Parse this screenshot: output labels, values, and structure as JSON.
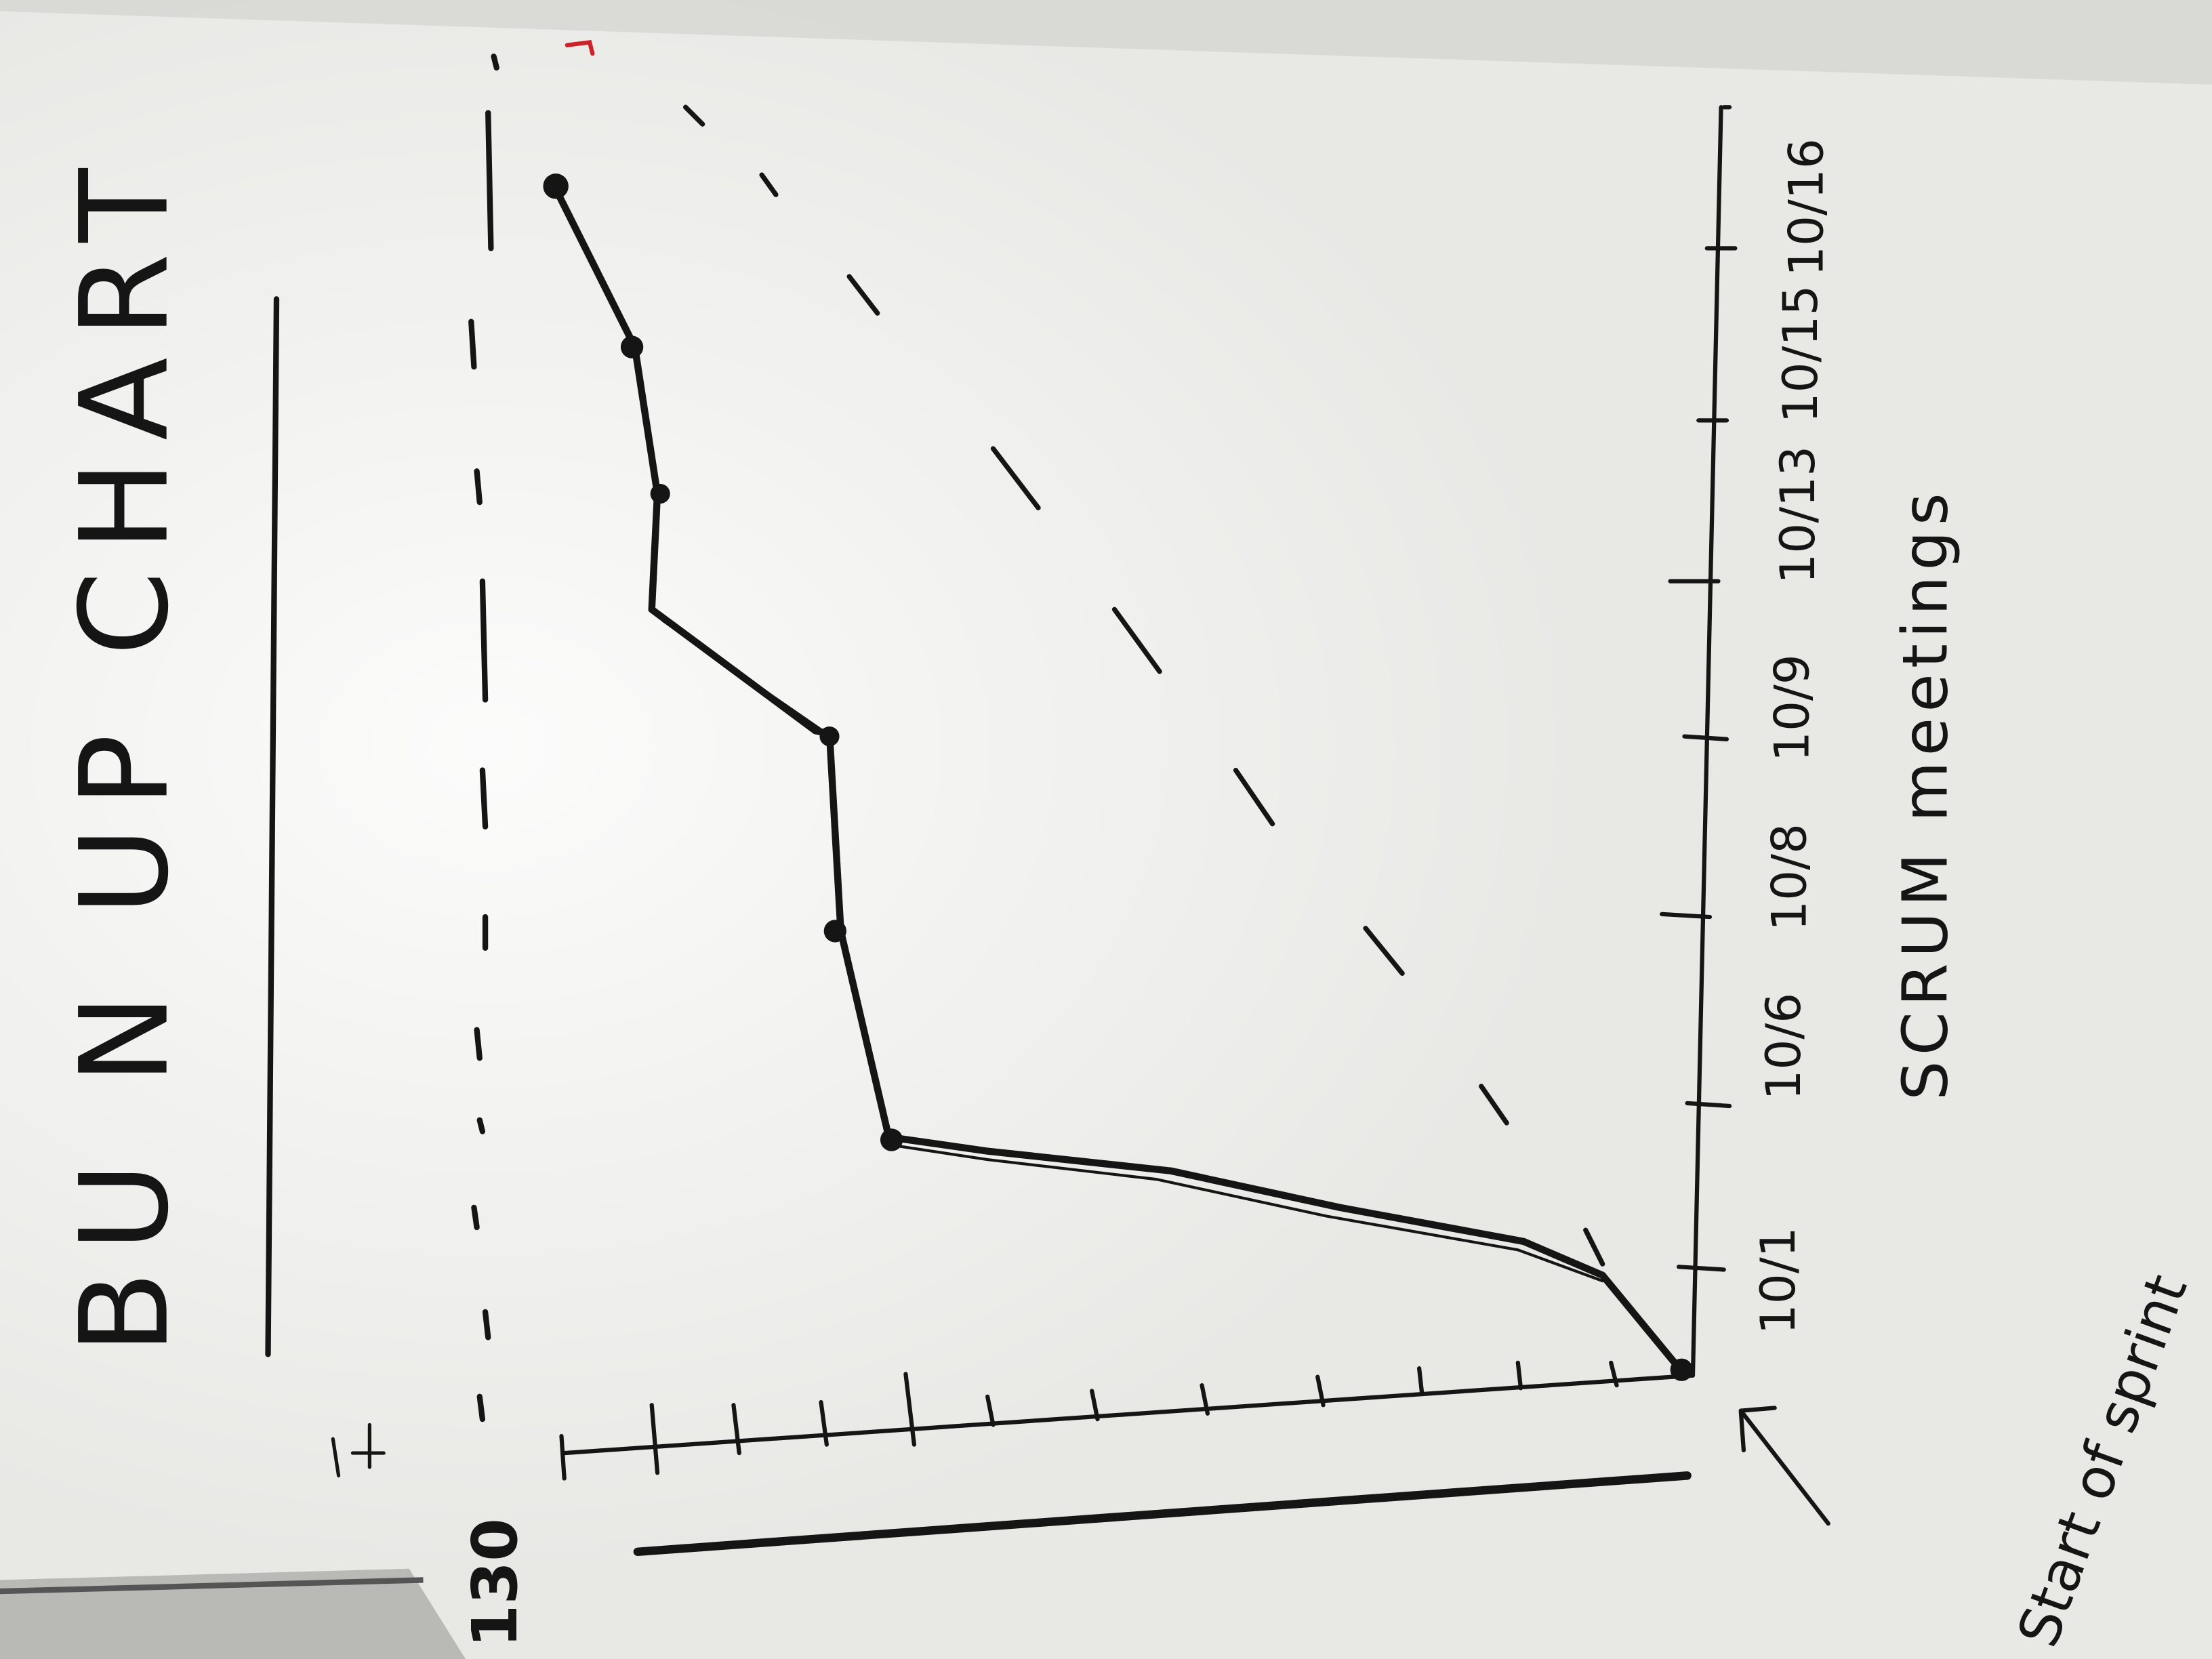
{
  "board": {
    "title": "BU N UP CHART",
    "y_axis_top_label": "130",
    "x_axis_label": "SCRUM meetings",
    "start_annotation": "Start of sprint",
    "x_tick_labels": [
      "10/1",
      "10/6",
      "10/8",
      "10/9",
      "10/13",
      "10/15",
      "10/16"
    ]
  },
  "colors": {
    "board": "#e6e6e3",
    "marker": "#151515",
    "secondary_marker": "#3a3a3a",
    "red_mark": "#d0202a"
  }
}
